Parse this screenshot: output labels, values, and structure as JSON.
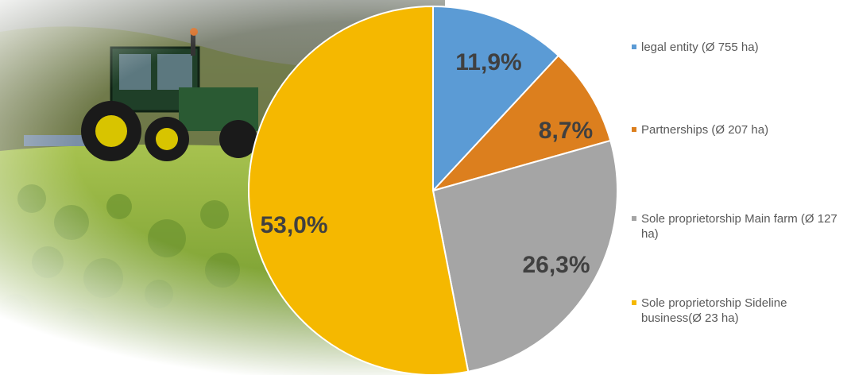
{
  "chart_data": {
    "type": "pie",
    "start_angle_deg": 0,
    "direction": "clockwise",
    "slices": [
      {
        "label": "legal entity (Ø 755 ha)",
        "value": 11.9,
        "display": "11,9%",
        "color": "#5B9BD5"
      },
      {
        "label": "Partnerships (Ø 207 ha)",
        "value": 8.7,
        "display": "8,7%",
        "color": "#DC7F1E"
      },
      {
        "label": "Sole proprietorship Main farm (Ø 127 ha)",
        "value": 26.3,
        "display": "26,3%",
        "color": "#A5A5A5"
      },
      {
        "label": "Sole proprietorship Sideline business(Ø 23 ha)",
        "value": 53.0,
        "display": "53,0%",
        "color": "#F5B800"
      }
    ],
    "legend_position": "right"
  },
  "legend": {
    "items": [
      {
        "text": "legal entity (Ø 755 ha)",
        "color": "#5B9BD5"
      },
      {
        "text": "Partnerships (Ø 207 ha)",
        "color": "#DC7F1E"
      },
      {
        "text": "Sole proprietorship Main farm (Ø 127 ha)",
        "color": "#A5A5A5"
      },
      {
        "text": "Sole proprietorship Sideline business(Ø 23 ha)",
        "color": "#F5B800"
      }
    ]
  }
}
